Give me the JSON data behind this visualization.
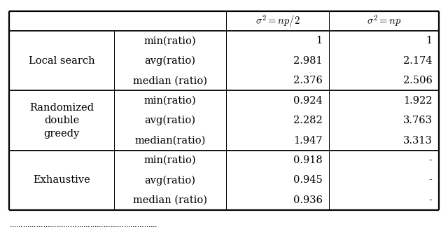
{
  "row_groups": [
    {
      "label": "Local search",
      "rows": [
        {
          "metric": "min(ratio)",
          "val1": "1",
          "val2": "1"
        },
        {
          "metric": "avg(ratio)",
          "val1": "2.981",
          "val2": "2.174"
        },
        {
          "metric": "median (ratio)",
          "val1": "2.376",
          "val2": "2.506"
        }
      ]
    },
    {
      "label": "Randomized\ndouble\ngreedy",
      "rows": [
        {
          "metric": "min(ratio)",
          "val1": "0.924",
          "val2": "1.922"
        },
        {
          "metric": "avg(ratio)",
          "val1": "2.282",
          "val2": "3.763"
        },
        {
          "metric": "median(ratio)",
          "val1": "1.947",
          "val2": "3.313"
        }
      ]
    },
    {
      "label": "Exhaustive",
      "rows": [
        {
          "metric": "min(ratio)",
          "val1": "0.918",
          "val2": "-"
        },
        {
          "metric": "avg(ratio)",
          "val1": "0.945",
          "val2": "-"
        },
        {
          "metric": "median (ratio)",
          "val1": "0.936",
          "val2": "-"
        }
      ]
    }
  ],
  "col_header_latex": [
    "$\\sigma^2 = np/2$",
    "$\\sigma^2 = np$"
  ],
  "figsize": [
    6.4,
    3.47
  ],
  "dpi": 100,
  "font_size": 10.5,
  "header_font_size": 10.5
}
